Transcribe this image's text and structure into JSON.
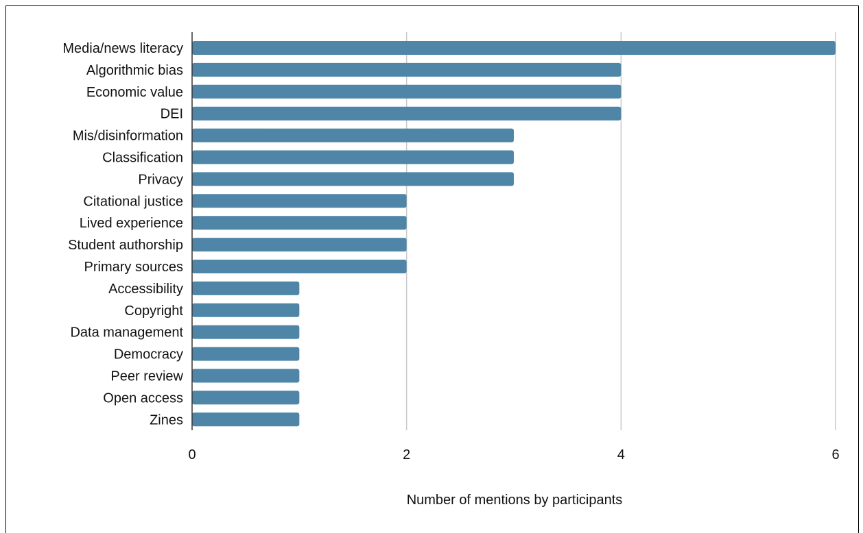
{
  "chart_data": {
    "type": "bar",
    "orientation": "horizontal",
    "title": "",
    "xlabel": "Number of mentions by participants",
    "ylabel": "",
    "categories": [
      "Media/news literacy",
      "Algorithmic bias",
      "Economic value",
      "DEI",
      "Mis/disinformation",
      "Classification",
      "Privacy",
      "Citational justice",
      "Lived experience",
      "Student authorship",
      "Primary sources",
      "Accessibility",
      "Copyright",
      "Data management",
      "Democracy",
      "Peer review",
      "Open access",
      "Zines"
    ],
    "values": [
      6,
      4,
      4,
      4,
      3,
      3,
      3,
      2,
      2,
      2,
      2,
      1,
      1,
      1,
      1,
      1,
      1,
      1
    ],
    "xlim": [
      0,
      6
    ],
    "xticks": [
      0,
      2,
      4,
      6
    ],
    "tick_labels": [
      "0",
      "2",
      "4",
      "6"
    ],
    "grid": true,
    "bar_color": "#4f86a8",
    "grid_color": "#c8c8c8",
    "axis_color": "#333333"
  }
}
